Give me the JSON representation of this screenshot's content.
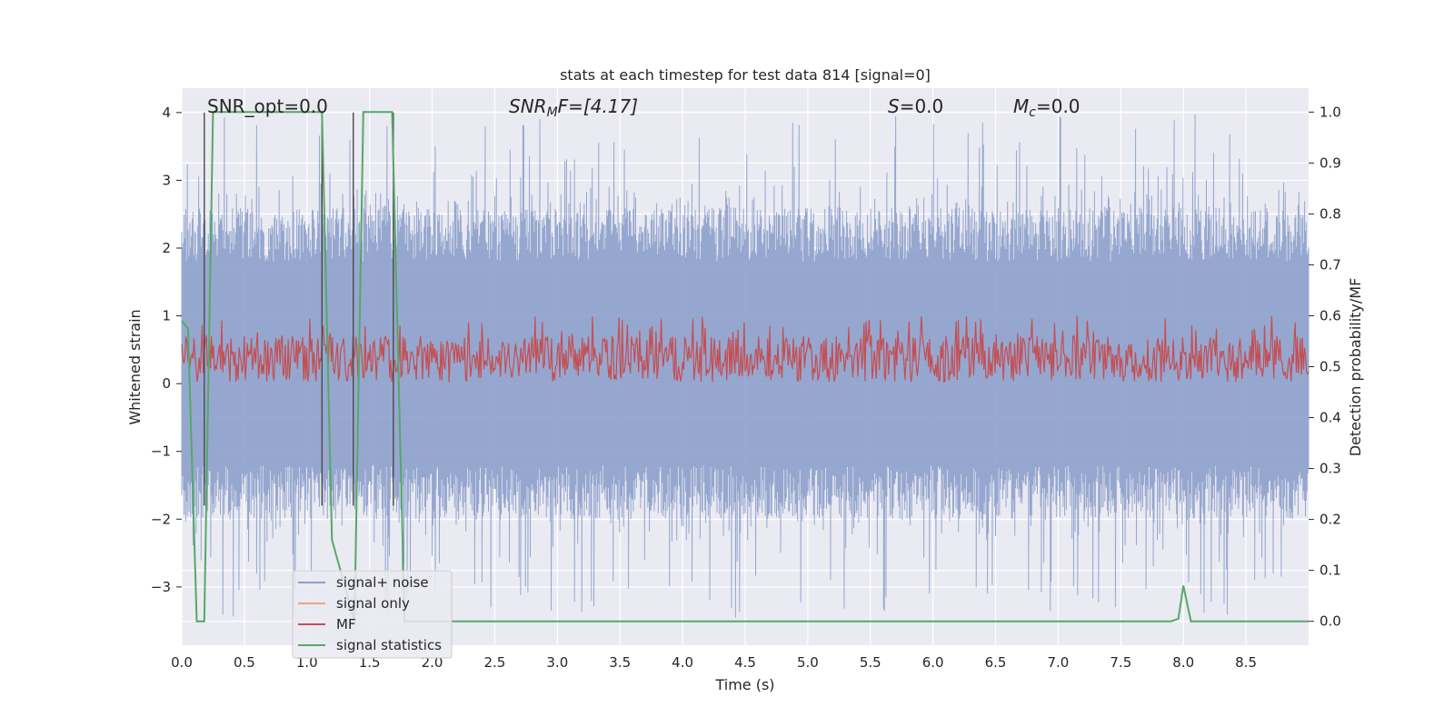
{
  "chart_data": {
    "type": "line",
    "title": "stats at each timestep for test data 814 [signal=0]",
    "xlabel": "Time (s)",
    "ylabel": "Whitened strain",
    "y2label": "Detection probability/MF",
    "xlim": [
      0.0,
      9.0
    ],
    "ylim": [
      -3.86,
      4.36
    ],
    "y2lim": [
      -0.047,
      1.047
    ],
    "x_ticks": [
      "0.0",
      "0.5",
      "1.0",
      "1.5",
      "2.0",
      "2.5",
      "3.0",
      "3.5",
      "4.0",
      "4.5",
      "5.0",
      "5.5",
      "6.0",
      "6.5",
      "7.0",
      "7.5",
      "8.0",
      "8.5"
    ],
    "y_ticks": [
      "4",
      "3",
      "2",
      "1",
      "0",
      "−1",
      "−2",
      "−3"
    ],
    "y_tick_values": [
      4,
      3,
      2,
      1,
      0,
      -1,
      -2,
      -3
    ],
    "y2_ticks": [
      "1.0",
      "0.9",
      "0.8",
      "0.7",
      "0.6",
      "0.5",
      "0.4",
      "0.3",
      "0.2",
      "0.1",
      "0.0"
    ],
    "y2_tick_values": [
      1.0,
      0.9,
      0.8,
      0.7,
      0.6,
      0.5,
      0.4,
      0.3,
      0.2,
      0.1,
      0.0
    ],
    "grid": true,
    "legend_position": "lower-left",
    "annotations": {
      "snr_opt": "SNR_opt=0.0",
      "snr_mf_prefix": "SNR",
      "snr_mf_sub": "M",
      "snr_mf_suffix": "F=[4.17]",
      "s_prefix": "S",
      "s_suffix": "=0.0",
      "mc_prefix": "M",
      "mc_sub": "c",
      "mc_suffix": "=0.0"
    },
    "series": [
      {
        "name": "signal+ noise",
        "color": "#8da0cb",
        "axis": "left",
        "kind": "noise",
        "x_range": [
          0.0,
          9.0
        ],
        "upper_envelope": [
          1.8,
          2.6
        ],
        "lower_envelope": [
          -1.2,
          -2.0
        ],
        "peak_max": 4.0,
        "trough_min": -3.5
      },
      {
        "name": "signal only",
        "color": "#e8a58a",
        "axis": "left",
        "values": []
      },
      {
        "name": "MF",
        "color": "#c44e52",
        "axis": "right",
        "kind": "noise",
        "x_range": [
          0.0,
          9.0
        ],
        "center": 0.51,
        "band": [
          0.47,
          0.56
        ],
        "peak_max": 0.6
      },
      {
        "name": "signal statistics",
        "color": "#55a868",
        "axis": "right",
        "x": [
          0.0,
          0.05,
          0.12,
          0.18,
          0.25,
          1.12,
          1.2,
          1.38,
          1.45,
          1.68,
          1.78,
          2.0,
          3.0,
          4.0,
          5.0,
          6.0,
          7.0,
          7.5,
          7.9,
          7.96,
          8.0,
          8.06,
          8.5,
          9.0
        ],
        "y": [
          0.59,
          0.575,
          0.0,
          0.0,
          1.0,
          1.0,
          0.16,
          0.0,
          1.0,
          1.0,
          0.0,
          0.0,
          0.0,
          0.0,
          0.0,
          0.0,
          0.0,
          0.0,
          0.0,
          0.005,
          0.07,
          0.0,
          0.0,
          0.0
        ]
      },
      {
        "name": "detection markers",
        "color": "#4a4a4a",
        "axis": "left",
        "kind": "vlines",
        "x": [
          0.18,
          1.12,
          1.37,
          1.69
        ],
        "y_top": 4.0,
        "y_bottom": -1.8
      }
    ]
  }
}
